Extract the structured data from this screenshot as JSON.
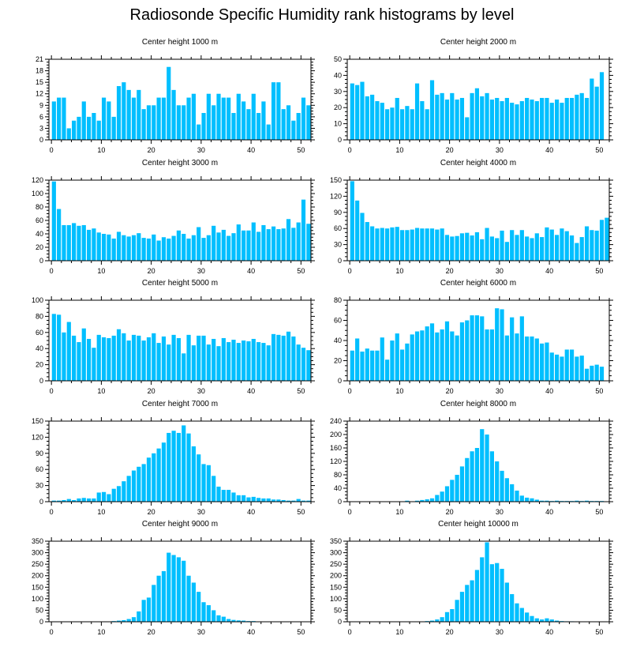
{
  "figure": {
    "title": "Radiosonde Specific Humidity rank histograms by level",
    "bar_color": "#00BFFF"
  },
  "chart_data": [
    {
      "type": "bar",
      "title": "Center height 1000 m",
      "ylim": [
        0,
        21
      ],
      "yticks": [
        0,
        3,
        6,
        9,
        12,
        15,
        18,
        21
      ],
      "xlim": [
        -0.5,
        52
      ],
      "xticks": [
        0,
        10,
        20,
        30,
        40,
        50
      ],
      "values": [
        10,
        11,
        11,
        3,
        5,
        6,
        10,
        6,
        7,
        5,
        11,
        10,
        6,
        14,
        15,
        13,
        11,
        13,
        8,
        9,
        9,
        11,
        11,
        19,
        13,
        9,
        9,
        11,
        12,
        4,
        7,
        12,
        9,
        12,
        11,
        11,
        7,
        12,
        10,
        8,
        12,
        7,
        10,
        4,
        15,
        15,
        8,
        9,
        5,
        7,
        11,
        9
      ]
    },
    {
      "type": "bar",
      "title": "Center height 2000 m",
      "ylim": [
        0,
        50
      ],
      "yticks": [
        0,
        10,
        20,
        30,
        40,
        50
      ],
      "xlim": [
        -0.5,
        52
      ],
      "xticks": [
        0,
        10,
        20,
        30,
        40,
        50
      ],
      "values": [
        35,
        34,
        36,
        27,
        28,
        24,
        23,
        19,
        20,
        26,
        19,
        21,
        19,
        35,
        24,
        19,
        37,
        28,
        29,
        25,
        29,
        25,
        26,
        14,
        29,
        32,
        27,
        29,
        25,
        26,
        24,
        26,
        23,
        22,
        24,
        26,
        25,
        24,
        26,
        26,
        23,
        25,
        23,
        26,
        26,
        28,
        29,
        26,
        38,
        33,
        42,
        0
      ]
    },
    {
      "type": "bar",
      "title": "Center height 3000 m",
      "ylim": [
        0,
        120
      ],
      "yticks": [
        0,
        20,
        40,
        60,
        80,
        100,
        120
      ],
      "xlim": [
        -0.5,
        52
      ],
      "xticks": [
        0,
        10,
        20,
        30,
        40,
        50
      ],
      "values": [
        118,
        77,
        53,
        53,
        56,
        52,
        53,
        46,
        48,
        42,
        40,
        39,
        33,
        43,
        38,
        36,
        38,
        41,
        34,
        33,
        39,
        30,
        35,
        33,
        37,
        45,
        40,
        33,
        38,
        50,
        34,
        38,
        52,
        42,
        46,
        37,
        41,
        54,
        45,
        45,
        57,
        43,
        53,
        47,
        51,
        47,
        48,
        62,
        49,
        57,
        91,
        55
      ]
    },
    {
      "type": "bar",
      "title": "Center height 4000 m",
      "ylim": [
        0,
        150
      ],
      "yticks": [
        0,
        30,
        60,
        90,
        120,
        150
      ],
      "xlim": [
        -0.5,
        52
      ],
      "xticks": [
        0,
        10,
        20,
        30,
        40,
        50
      ],
      "values": [
        148,
        112,
        89,
        72,
        64,
        60,
        61,
        60,
        62,
        63,
        57,
        57,
        58,
        61,
        60,
        60,
        60,
        58,
        60,
        48,
        45,
        46,
        51,
        52,
        47,
        53,
        40,
        61,
        45,
        42,
        56,
        35,
        57,
        48,
        57,
        45,
        42,
        51,
        44,
        62,
        58,
        48,
        60,
        55,
        47,
        33,
        44,
        64,
        57,
        56,
        76,
        80
      ]
    },
    {
      "type": "bar",
      "title": "Center height 5000 m",
      "ylim": [
        0,
        100
      ],
      "yticks": [
        0,
        20,
        40,
        60,
        80,
        100
      ],
      "xlim": [
        -0.5,
        52
      ],
      "xticks": [
        0,
        10,
        20,
        30,
        40,
        50
      ],
      "values": [
        83,
        82,
        60,
        73,
        56,
        48,
        65,
        52,
        41,
        57,
        54,
        53,
        56,
        64,
        59,
        50,
        57,
        56,
        50,
        54,
        59,
        47,
        55,
        45,
        57,
        53,
        34,
        57,
        44,
        56,
        56,
        45,
        52,
        43,
        53,
        48,
        51,
        47,
        50,
        49,
        52,
        48,
        47,
        44,
        58,
        57,
        56,
        61,
        55,
        45,
        41,
        38
      ]
    },
    {
      "type": "bar",
      "title": "Center height 6000 m",
      "ylim": [
        0,
        80
      ],
      "yticks": [
        0,
        20,
        40,
        60,
        80
      ],
      "xlim": [
        -0.5,
        52
      ],
      "xticks": [
        0,
        10,
        20,
        30,
        40,
        50
      ],
      "values": [
        30,
        42,
        29,
        32,
        30,
        30,
        43,
        21,
        40,
        47,
        31,
        37,
        46,
        49,
        50,
        54,
        57,
        48,
        51,
        59,
        49,
        45,
        58,
        60,
        65,
        65,
        64,
        51,
        51,
        72,
        71,
        45,
        63,
        47,
        64,
        44,
        44,
        42,
        37,
        38,
        28,
        26,
        24,
        31,
        31,
        24,
        25,
        12,
        15,
        16,
        14,
        0
      ]
    },
    {
      "type": "bar",
      "title": "Center height 7000 m",
      "ylim": [
        0,
        150
      ],
      "yticks": [
        0,
        30,
        60,
        90,
        120,
        150
      ],
      "xlim": [
        -0.5,
        52
      ],
      "xticks": [
        0,
        10,
        20,
        30,
        40,
        50
      ],
      "values": [
        2,
        2,
        3,
        5,
        3,
        6,
        7,
        6,
        6,
        17,
        18,
        14,
        24,
        29,
        38,
        48,
        58,
        65,
        70,
        82,
        90,
        99,
        110,
        128,
        132,
        128,
        142,
        127,
        103,
        88,
        70,
        68,
        48,
        28,
        22,
        22,
        17,
        12,
        12,
        8,
        9,
        7,
        6,
        6,
        4,
        4,
        3,
        2,
        2,
        5,
        2,
        2
      ]
    },
    {
      "type": "bar",
      "title": "Center height 8000 m",
      "ylim": [
        0,
        240
      ],
      "yticks": [
        0,
        40,
        80,
        120,
        160,
        200,
        240
      ],
      "xlim": [
        -0.5,
        52
      ],
      "xticks": [
        0,
        10,
        20,
        30,
        40,
        50
      ],
      "values": [
        0,
        0,
        0,
        0,
        0,
        0,
        0,
        0,
        0,
        0,
        0,
        3,
        0,
        3,
        5,
        7,
        10,
        20,
        30,
        46,
        65,
        80,
        105,
        130,
        150,
        160,
        216,
        200,
        150,
        120,
        92,
        70,
        52,
        33,
        18,
        12,
        10,
        6,
        3,
        3,
        2,
        3,
        2,
        2,
        2,
        3,
        2,
        3,
        2,
        2,
        2,
        0
      ]
    },
    {
      "type": "bar",
      "title": "Center height 9000 m",
      "ylim": [
        0,
        350
      ],
      "yticks": [
        0,
        50,
        100,
        150,
        200,
        250,
        300,
        350
      ],
      "xlim": [
        -0.5,
        52
      ],
      "xticks": [
        0,
        10,
        20,
        30,
        40,
        50
      ],
      "values": [
        0,
        0,
        0,
        0,
        0,
        0,
        0,
        0,
        0,
        0,
        0,
        0,
        3,
        5,
        7,
        12,
        20,
        45,
        95,
        105,
        160,
        200,
        220,
        300,
        290,
        280,
        265,
        200,
        170,
        130,
        85,
        72,
        50,
        28,
        22,
        12,
        8,
        6,
        5,
        3,
        3,
        0,
        0,
        0,
        0,
        0,
        0,
        0,
        0,
        0,
        0,
        0
      ]
    },
    {
      "type": "bar",
      "title": "Center height 10000 m",
      "ylim": [
        0,
        350
      ],
      "yticks": [
        0,
        50,
        100,
        150,
        200,
        250,
        300,
        350
      ],
      "xlim": [
        -0.5,
        52
      ],
      "xticks": [
        0,
        10,
        20,
        30,
        40,
        50
      ],
      "values": [
        0,
        0,
        0,
        0,
        0,
        0,
        0,
        0,
        0,
        0,
        0,
        0,
        0,
        0,
        0,
        3,
        5,
        10,
        20,
        42,
        55,
        95,
        130,
        160,
        180,
        225,
        280,
        345,
        250,
        255,
        230,
        170,
        120,
        80,
        60,
        40,
        25,
        15,
        10,
        15,
        10,
        5,
        3,
        2,
        2,
        0,
        0,
        0,
        0,
        0,
        0,
        0
      ]
    }
  ]
}
